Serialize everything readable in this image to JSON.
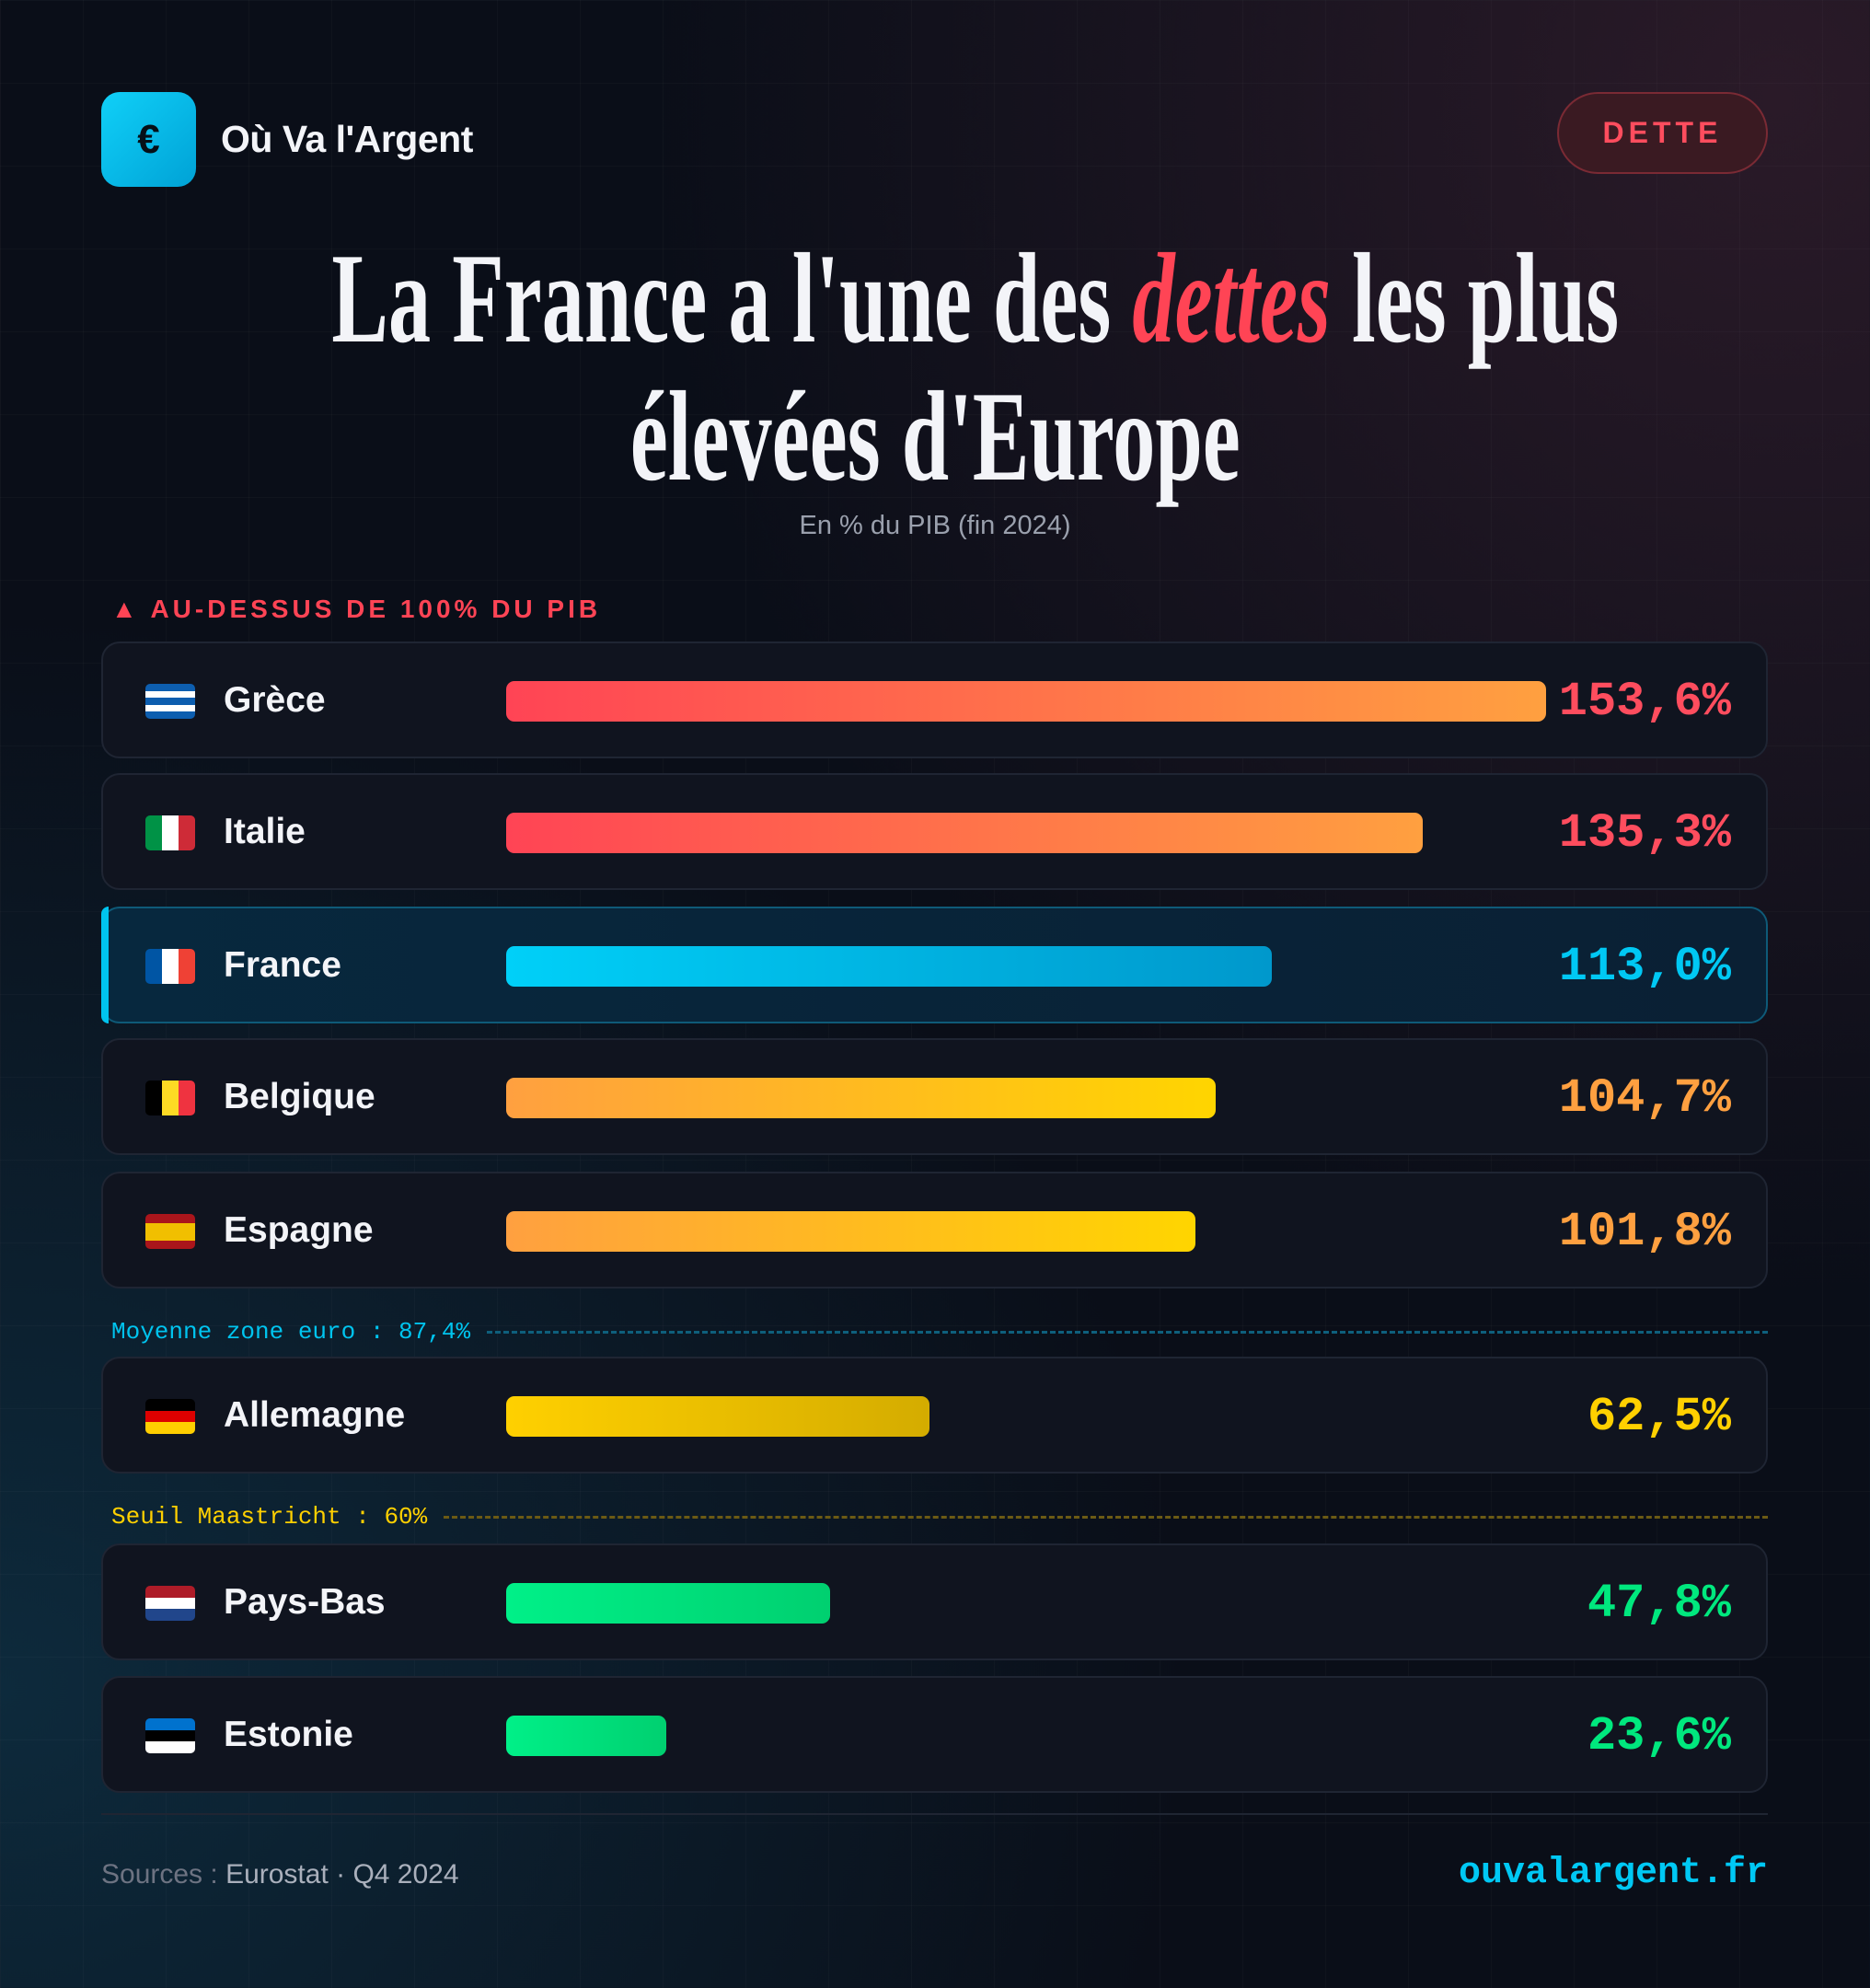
{
  "brand": {
    "icon": "euro-icon",
    "symbol": "€",
    "name": "Où Va l'Argent"
  },
  "badge": "DETTE",
  "title": {
    "line1_pre": "La France a l'une des ",
    "line1_em": "dettes",
    "line1_post": " les plus",
    "line2": "élevées d'Europe"
  },
  "subtitle": "En % du PIB (fin 2024)",
  "section_label": "▲ AU-DESSUS DE 100% DU PIB",
  "reference_lines": {
    "euro_avg": {
      "label": "Moyenne zone euro : 87,4%",
      "value": 87.4,
      "color": "#00c4ef"
    },
    "maastricht": {
      "label": "Seuil Maastricht : 60%",
      "value": 60,
      "color": "#ffd000"
    }
  },
  "chart_data": {
    "type": "bar",
    "title": "La France a l'une des dettes les plus élevées d'Europe",
    "ylabel": "En % du PIB (fin 2024)",
    "categories": [
      "Grèce",
      "Italie",
      "France",
      "Belgique",
      "Espagne",
      "Allemagne",
      "Pays-Bas",
      "Estonie"
    ],
    "values": [
      153.6,
      135.3,
      113.0,
      104.7,
      101.8,
      62.5,
      47.8,
      23.6
    ],
    "labels": [
      "153,6%",
      "135,3%",
      "113,0%",
      "104,7%",
      "101,8%",
      "62,5%",
      "47,8%",
      "23,6%"
    ],
    "highlight": "France",
    "colors": [
      [
        "#ff4455",
        "#ffa040"
      ],
      [
        "#ff4455",
        "#ffa040"
      ],
      [
        "#00d0f8",
        "#0098cc"
      ],
      [
        "#ffa040",
        "#ffd500"
      ],
      [
        "#ffa040",
        "#ffd500"
      ],
      [
        "#ffd000",
        "#d4ac00"
      ],
      [
        "#00f088",
        "#00d070"
      ],
      [
        "#00f088",
        "#00d070"
      ]
    ],
    "value_colors": [
      "#ff4d5e",
      "#ff4d5e",
      "#00c8f4",
      "#ffa040",
      "#ffa040",
      "#ffd000",
      "#00e87e",
      "#00e87e"
    ],
    "flags": [
      [
        "#0d5eaf",
        "#ffffff",
        "#0d5eaf",
        "#ffffff",
        "#0d5eaf"
      ],
      [
        "#009246",
        "#ffffff",
        "#ce2b37"
      ],
      [
        "#0055a4",
        "#ffffff",
        "#ef4135"
      ],
      [
        "#000000",
        "#fdda24",
        "#ef3340"
      ],
      [
        "#aa151b",
        "#f1bf00",
        "#f1bf00",
        "#aa151b"
      ],
      [
        "#000000",
        "#dd0000",
        "#ffce00"
      ],
      [
        "#ae1c28",
        "#ffffff",
        "#21468b"
      ],
      [
        "#0072ce",
        "#000000",
        "#ffffff"
      ]
    ],
    "flag_dir": [
      "h",
      "v",
      "v",
      "v",
      "h",
      "h",
      "h",
      "h"
    ]
  },
  "footer": {
    "sources_label": "Sources : ",
    "sources": "Eurostat · Q4 2024",
    "site": "ouvalargent.fr"
  }
}
